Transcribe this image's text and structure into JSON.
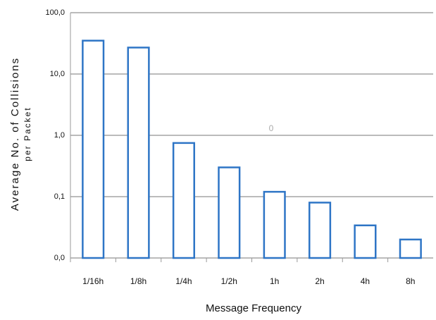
{
  "chart_data": {
    "type": "bar",
    "ylabel": [
      "Average No. of Collisions",
      "per Packet"
    ],
    "xlabel": "Message Frequency",
    "annotation": "0",
    "categories": [
      "1/16h",
      "1/8h",
      "1/4h",
      "1/2h",
      "1h",
      "2h",
      "4h",
      "8h"
    ],
    "values": [
      35,
      27,
      0.75,
      0.3,
      0.12,
      0.08,
      0.034,
      0.02
    ],
    "color": "#2e75c6",
    "log": true,
    "ylim": [
      0.01,
      100
    ],
    "yticks": [
      {
        "value": 0.01,
        "label": "0,0"
      },
      {
        "value": 0.1,
        "label": "0,1"
      },
      {
        "value": 1,
        "label": "1,0"
      },
      {
        "value": 10,
        "label": "10,0"
      },
      {
        "value": 100,
        "label": "100,0"
      }
    ],
    "grid": true
  }
}
